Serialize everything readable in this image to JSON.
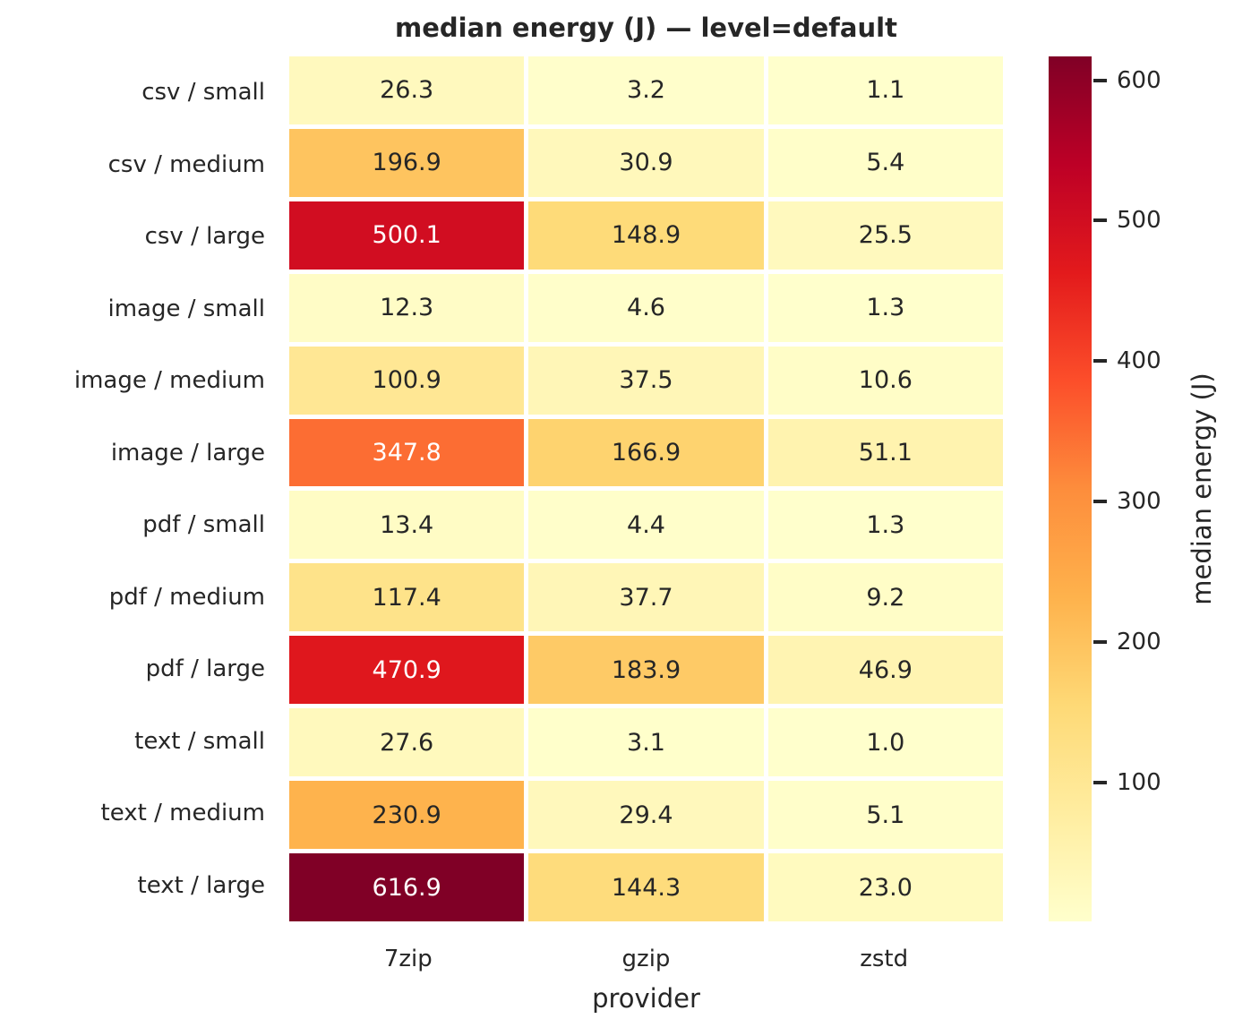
{
  "chart_data": {
    "type": "heatmap",
    "title": "median energy (J) — level=default",
    "xlabel": "provider",
    "ylabel": "",
    "rows": [
      "csv / small",
      "csv / medium",
      "csv / large",
      "image / small",
      "image / medium",
      "image / large",
      "pdf / small",
      "pdf / medium",
      "pdf / large",
      "text / small",
      "text / medium",
      "text / large"
    ],
    "columns": [
      "7zip",
      "gzip",
      "zstd"
    ],
    "values": [
      [
        26.3,
        3.2,
        1.1
      ],
      [
        196.9,
        30.9,
        5.4
      ],
      [
        500.1,
        148.9,
        25.5
      ],
      [
        12.3,
        4.6,
        1.3
      ],
      [
        100.9,
        37.5,
        10.6
      ],
      [
        347.8,
        166.9,
        51.1
      ],
      [
        13.4,
        4.4,
        1.3
      ],
      [
        117.4,
        37.7,
        9.2
      ],
      [
        470.9,
        183.9,
        46.9
      ],
      [
        27.6,
        3.1,
        1.0
      ],
      [
        230.9,
        29.4,
        5.1
      ],
      [
        616.9,
        144.3,
        23.0
      ]
    ],
    "value_decimals": 1,
    "colorbar": {
      "label": "median energy (J)",
      "ticks": [
        100,
        200,
        300,
        400,
        500,
        600
      ],
      "vmin": 1.0,
      "vmax": 616.9
    },
    "colormap": {
      "name": "YlOrRd",
      "anchors": [
        "#ffffcc",
        "#ffeda0",
        "#fed976",
        "#feb24c",
        "#fd8d3c",
        "#fc4e2a",
        "#e31a1c",
        "#bd0026",
        "#800026"
      ]
    },
    "annotation_colors": {
      "dark_text": "#262626",
      "light_text": "#ffffff"
    },
    "grid_line_color": "#ffffff"
  }
}
